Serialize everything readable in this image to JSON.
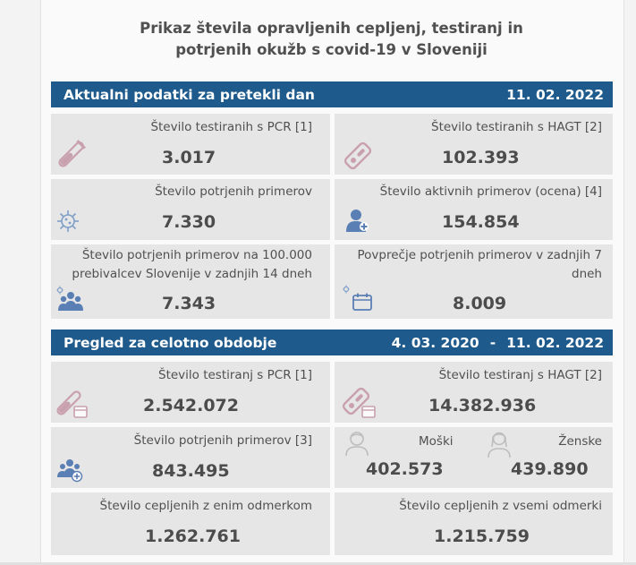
{
  "title": {
    "line1": "Prikaz števila opravljenih cepljenj, testiranj in",
    "line2": "potrjenih okužb s covid-19 v Sloveniji"
  },
  "current": {
    "header": "Aktualni podatki za pretekli dan",
    "date": "11. 02. 2022",
    "pcr_label": "Število testiranih s PCR [1]",
    "pcr_value": "3.017",
    "hagt_label": "Število testiranih s HAGT [2]",
    "hagt_value": "102.393",
    "confirmed_label": "Število potrjenih primerov",
    "confirmed_value": "7.330",
    "active_label": "Število aktivnih primerov (ocena) [4]",
    "active_value": "154.854",
    "per100k_label_1": "Število potrjenih primerov na 100.000",
    "per100k_label_2": "prebivalcev Slovenije v zadnjih 14 dneh",
    "per100k_value": "7.343",
    "avg7_label_1": "Povprečje potrjenih primerov v zadnjih 7",
    "avg7_label_2": "dneh",
    "avg7_value": "8.009"
  },
  "overall": {
    "header": "Pregled za celotno obdobje",
    "date_from": "4. 03. 2020",
    "dash": "-",
    "date_to": "11. 02. 2022",
    "pcr_label": "Število testiranj s PCR [1]",
    "pcr_value": "2.542.072",
    "hagt_label": "Število testiranj s HAGT [2]",
    "hagt_value": "14.382.936",
    "confirmed_label": "Število potrjenih primerov [3]",
    "confirmed_value": "843.495",
    "male_label": "Moški",
    "male_value": "402.573",
    "female_label": "Ženske",
    "female_value": "439.890",
    "vacc_one_label": "Število cepljenih z enim odmerkom",
    "vacc_one_value": "1.262.761",
    "vacc_all_label": "Število cepljenih z vsemi odmerki",
    "vacc_all_value": "1.215.759"
  },
  "colors": {
    "header_bg": "#1e5a8b",
    "icon_pink": "#c9a0ad",
    "icon_blue": "#5a7fb4"
  }
}
